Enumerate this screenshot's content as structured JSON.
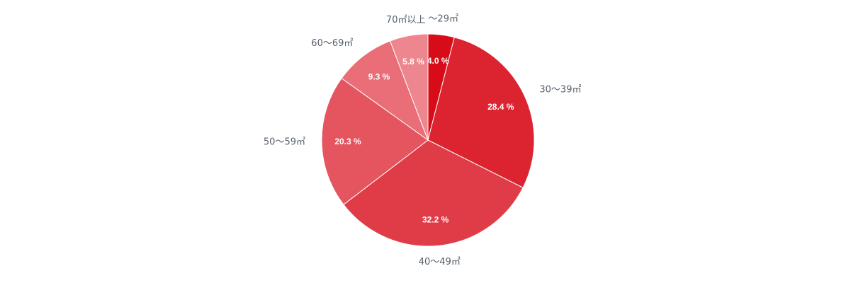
{
  "chart_data": {
    "type": "pie",
    "categories": [
      "〜29㎡",
      "30〜39㎡",
      "40〜49㎡",
      "50〜59㎡",
      "60〜69㎡",
      "70㎡以上"
    ],
    "values": [
      4.0,
      28.4,
      32.2,
      20.3,
      9.3,
      5.8
    ],
    "value_labels": [
      "4.0 %",
      "28.4 %",
      "32.2 %",
      "20.3 %",
      "9.3 %",
      "5.8 %"
    ],
    "colors": [
      "#d70c18",
      "#dc2330",
      "#e03c48",
      "#e45560",
      "#e96e77",
      "#ed868e"
    ],
    "unit": "%",
    "start_angle_deg": 0,
    "direction": "clockwise",
    "legend": "none",
    "title": ""
  }
}
